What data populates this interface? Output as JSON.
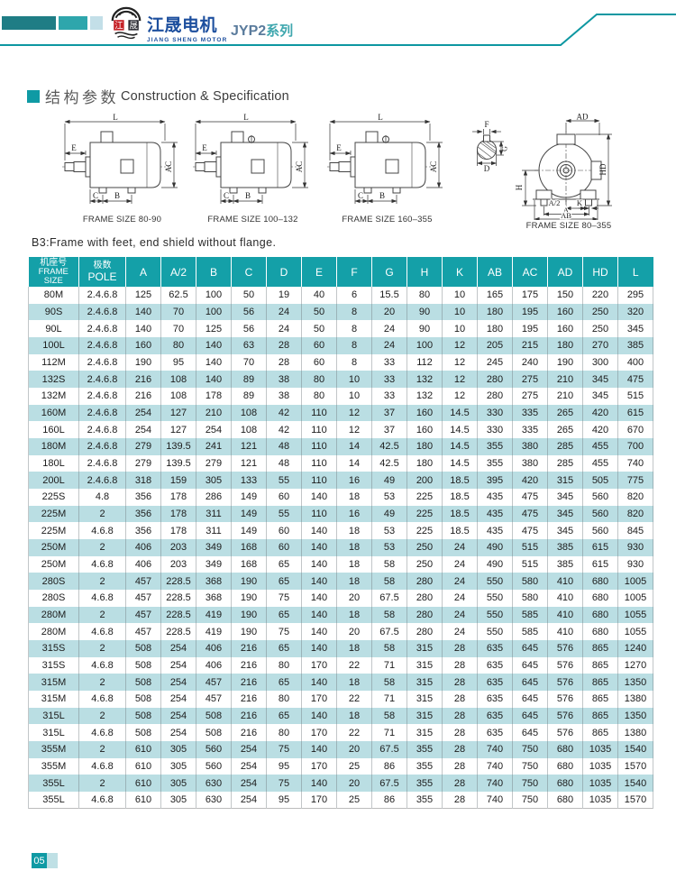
{
  "header": {
    "brand_cn": "江晟电机",
    "brand_en": "JIANG SHENG MOTOR",
    "series_model": "JYP2",
    "series_suffix": "系列",
    "logo_char_left": "江",
    "logo_char_right": "晟"
  },
  "section": {
    "title_cn": "结构参数",
    "title_en": "Construction & Specification"
  },
  "drawings": {
    "note": "B3:Frame with feet, end shield without flange.",
    "captions": [
      "FRAME SIZE 80-90",
      "FRAME SIZE 100–132",
      "FRAME SIZE 160–355",
      "FRAME SIZE 80–355"
    ],
    "dim_labels": {
      "L": "L",
      "E": "E",
      "AC": "AC",
      "C": "C",
      "B": "B",
      "F": "F",
      "G": "G",
      "D": "D",
      "AD": "AD",
      "HD": "HD",
      "H": "H",
      "A2": "A/2",
      "A": "A",
      "AB": "AB",
      "K": "K"
    }
  },
  "table": {
    "frame_header": [
      "机座号",
      "FRAME",
      "SIZE"
    ],
    "pole_header": [
      "极数",
      "POLE"
    ],
    "columns": [
      "A",
      "A/2",
      "B",
      "C",
      "D",
      "E",
      "F",
      "G",
      "H",
      "K",
      "AB",
      "AC",
      "AD",
      "HD",
      "L"
    ],
    "rows": [
      [
        "80M",
        "2.4.6.8",
        "125",
        "62.5",
        "100",
        "50",
        "19",
        "40",
        "6",
        "15.5",
        "80",
        "10",
        "165",
        "175",
        "150",
        "220",
        "295"
      ],
      [
        "90S",
        "2.4.6.8",
        "140",
        "70",
        "100",
        "56",
        "24",
        "50",
        "8",
        "20",
        "90",
        "10",
        "180",
        "195",
        "160",
        "250",
        "320"
      ],
      [
        "90L",
        "2.4.6.8",
        "140",
        "70",
        "125",
        "56",
        "24",
        "50",
        "8",
        "24",
        "90",
        "10",
        "180",
        "195",
        "160",
        "250",
        "345"
      ],
      [
        "100L",
        "2.4.6.8",
        "160",
        "80",
        "140",
        "63",
        "28",
        "60",
        "8",
        "24",
        "100",
        "12",
        "205",
        "215",
        "180",
        "270",
        "385"
      ],
      [
        "112M",
        "2.4.6.8",
        "190",
        "95",
        "140",
        "70",
        "28",
        "60",
        "8",
        "33",
        "112",
        "12",
        "245",
        "240",
        "190",
        "300",
        "400"
      ],
      [
        "132S",
        "2.4.6.8",
        "216",
        "108",
        "140",
        "89",
        "38",
        "80",
        "10",
        "33",
        "132",
        "12",
        "280",
        "275",
        "210",
        "345",
        "475"
      ],
      [
        "132M",
        "2.4.6.8",
        "216",
        "108",
        "178",
        "89",
        "38",
        "80",
        "10",
        "33",
        "132",
        "12",
        "280",
        "275",
        "210",
        "345",
        "515"
      ],
      [
        "160M",
        "2.4.6.8",
        "254",
        "127",
        "210",
        "108",
        "42",
        "110",
        "12",
        "37",
        "160",
        "14.5",
        "330",
        "335",
        "265",
        "420",
        "615"
      ],
      [
        "160L",
        "2.4.6.8",
        "254",
        "127",
        "254",
        "108",
        "42",
        "110",
        "12",
        "37",
        "160",
        "14.5",
        "330",
        "335",
        "265",
        "420",
        "670"
      ],
      [
        "180M",
        "2.4.6.8",
        "279",
        "139.5",
        "241",
        "121",
        "48",
        "110",
        "14",
        "42.5",
        "180",
        "14.5",
        "355",
        "380",
        "285",
        "455",
        "700"
      ],
      [
        "180L",
        "2.4.6.8",
        "279",
        "139.5",
        "279",
        "121",
        "48",
        "110",
        "14",
        "42.5",
        "180",
        "14.5",
        "355",
        "380",
        "285",
        "455",
        "740"
      ],
      [
        "200L",
        "2.4.6.8",
        "318",
        "159",
        "305",
        "133",
        "55",
        "110",
        "16",
        "49",
        "200",
        "18.5",
        "395",
        "420",
        "315",
        "505",
        "775"
      ],
      [
        "225S",
        "4.8",
        "356",
        "178",
        "286",
        "149",
        "60",
        "140",
        "18",
        "53",
        "225",
        "18.5",
        "435",
        "475",
        "345",
        "560",
        "820"
      ],
      [
        "225M",
        "2",
        "356",
        "178",
        "311",
        "149",
        "55",
        "110",
        "16",
        "49",
        "225",
        "18.5",
        "435",
        "475",
        "345",
        "560",
        "820"
      ],
      [
        "225M",
        "4.6.8",
        "356",
        "178",
        "311",
        "149",
        "60",
        "140",
        "18",
        "53",
        "225",
        "18.5",
        "435",
        "475",
        "345",
        "560",
        "845"
      ],
      [
        "250M",
        "2",
        "406",
        "203",
        "349",
        "168",
        "60",
        "140",
        "18",
        "53",
        "250",
        "24",
        "490",
        "515",
        "385",
        "615",
        "930"
      ],
      [
        "250M",
        "4.6.8",
        "406",
        "203",
        "349",
        "168",
        "65",
        "140",
        "18",
        "58",
        "250",
        "24",
        "490",
        "515",
        "385",
        "615",
        "930"
      ],
      [
        "280S",
        "2",
        "457",
        "228.5",
        "368",
        "190",
        "65",
        "140",
        "18",
        "58",
        "280",
        "24",
        "550",
        "580",
        "410",
        "680",
        "1005"
      ],
      [
        "280S",
        "4.6.8",
        "457",
        "228.5",
        "368",
        "190",
        "75",
        "140",
        "20",
        "67.5",
        "280",
        "24",
        "550",
        "580",
        "410",
        "680",
        "1005"
      ],
      [
        "280M",
        "2",
        "457",
        "228.5",
        "419",
        "190",
        "65",
        "140",
        "18",
        "58",
        "280",
        "24",
        "550",
        "585",
        "410",
        "680",
        "1055"
      ],
      [
        "280M",
        "4.6.8",
        "457",
        "228.5",
        "419",
        "190",
        "75",
        "140",
        "20",
        "67.5",
        "280",
        "24",
        "550",
        "585",
        "410",
        "680",
        "1055"
      ],
      [
        "315S",
        "2",
        "508",
        "254",
        "406",
        "216",
        "65",
        "140",
        "18",
        "58",
        "315",
        "28",
        "635",
        "645",
        "576",
        "865",
        "1240"
      ],
      [
        "315S",
        "4.6.8",
        "508",
        "254",
        "406",
        "216",
        "80",
        "170",
        "22",
        "71",
        "315",
        "28",
        "635",
        "645",
        "576",
        "865",
        "1270"
      ],
      [
        "315M",
        "2",
        "508",
        "254",
        "457",
        "216",
        "65",
        "140",
        "18",
        "58",
        "315",
        "28",
        "635",
        "645",
        "576",
        "865",
        "1350"
      ],
      [
        "315M",
        "4.6.8",
        "508",
        "254",
        "457",
        "216",
        "80",
        "170",
        "22",
        "71",
        "315",
        "28",
        "635",
        "645",
        "576",
        "865",
        "1380"
      ],
      [
        "315L",
        "2",
        "508",
        "254",
        "508",
        "216",
        "65",
        "140",
        "18",
        "58",
        "315",
        "28",
        "635",
        "645",
        "576",
        "865",
        "1350"
      ],
      [
        "315L",
        "4.6.8",
        "508",
        "254",
        "508",
        "216",
        "80",
        "170",
        "22",
        "71",
        "315",
        "28",
        "635",
        "645",
        "576",
        "865",
        "1380"
      ],
      [
        "355M",
        "2",
        "610",
        "305",
        "560",
        "254",
        "75",
        "140",
        "20",
        "67.5",
        "355",
        "28",
        "740",
        "750",
        "680",
        "1035",
        "1540"
      ],
      [
        "355M",
        "4.6.8",
        "610",
        "305",
        "560",
        "254",
        "95",
        "170",
        "25",
        "86",
        "355",
        "28",
        "740",
        "750",
        "680",
        "1035",
        "1570"
      ],
      [
        "355L",
        "2",
        "610",
        "305",
        "630",
        "254",
        "75",
        "140",
        "20",
        "67.5",
        "355",
        "28",
        "740",
        "750",
        "680",
        "1035",
        "1540"
      ],
      [
        "355L",
        "4.6.8",
        "610",
        "305",
        "630",
        "254",
        "95",
        "170",
        "25",
        "86",
        "355",
        "28",
        "740",
        "750",
        "680",
        "1035",
        "1570"
      ]
    ]
  },
  "footer": {
    "page": "05"
  }
}
